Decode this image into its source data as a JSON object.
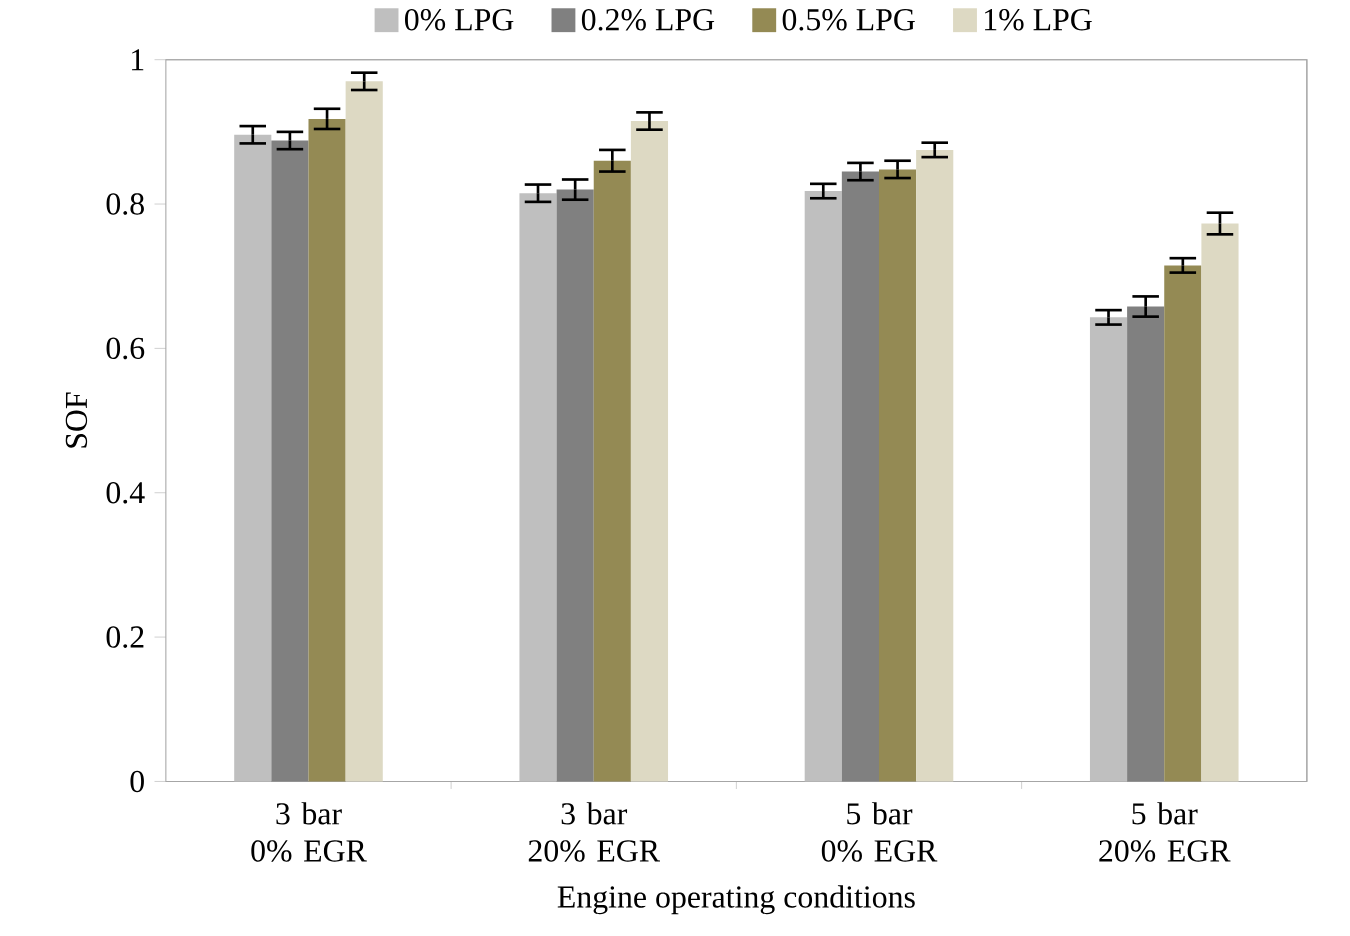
{
  "chart_data": {
    "type": "bar",
    "xlabel": "Engine operating conditions",
    "ylabel": "SOF",
    "categories": [
      "3 bar 0% EGR",
      "3 bar 20% EGR",
      "5 bar 0% EGR",
      "5 bar 20% EGR"
    ],
    "series": [
      {
        "name": "0% LPG",
        "color": "#bfbfbf",
        "values": [
          0.896,
          0.815,
          0.818,
          0.643
        ],
        "errors": [
          0.012,
          0.012,
          0.01,
          0.01
        ]
      },
      {
        "name": "0.2% LPG",
        "color": "#808080",
        "values": [
          0.888,
          0.82,
          0.845,
          0.658
        ],
        "errors": [
          0.012,
          0.014,
          0.012,
          0.014
        ]
      },
      {
        "name": "0.5% LPG",
        "color": "#948a54",
        "values": [
          0.918,
          0.86,
          0.848,
          0.715
        ],
        "errors": [
          0.014,
          0.015,
          0.012,
          0.01
        ]
      },
      {
        "name": "1% LPG",
        "color": "#ddd9c3",
        "values": [
          0.97,
          0.915,
          0.875,
          0.773
        ],
        "errors": [
          0.012,
          0.012,
          0.01,
          0.015
        ]
      }
    ],
    "ylim": [
      0,
      1
    ],
    "yticks": [
      0,
      0.2,
      0.4,
      0.6,
      0.8,
      1
    ],
    "grid": false,
    "legend": "top"
  }
}
